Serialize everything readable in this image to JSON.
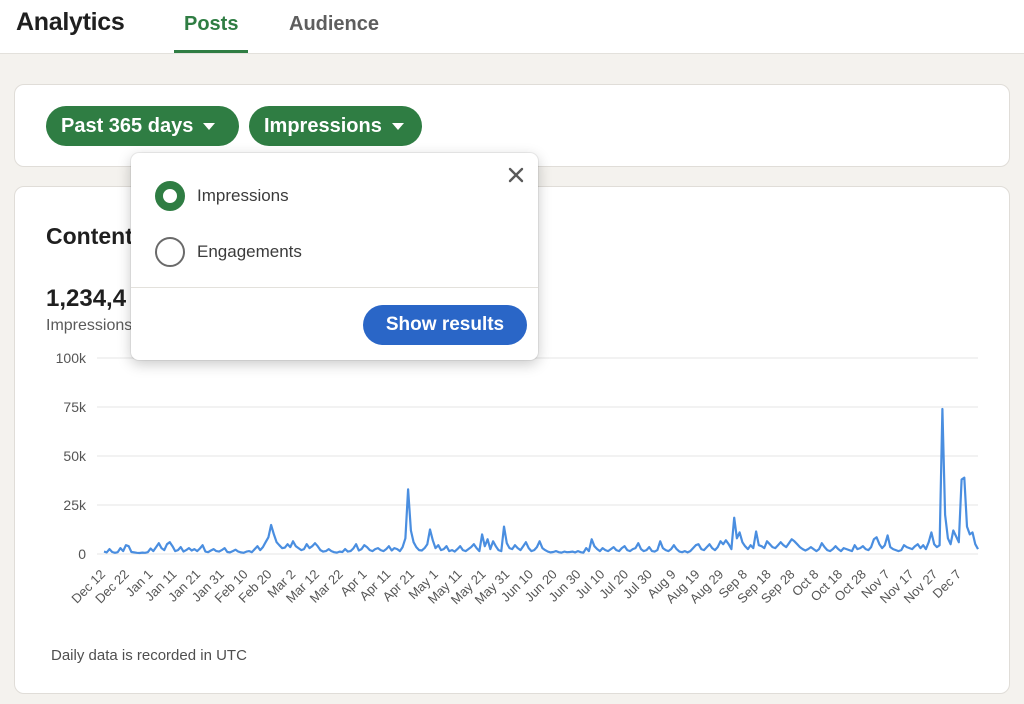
{
  "header": {
    "title": "Analytics",
    "tabs": [
      {
        "label": "Posts",
        "active": true
      },
      {
        "label": "Audience",
        "active": false
      }
    ]
  },
  "filters": {
    "date_range": "Past 365 days",
    "metric": "Impressions"
  },
  "content": {
    "title": "Content performance",
    "total": "1,234,4",
    "total_label": "Impressions",
    "footnote": "Daily data is recorded in UTC"
  },
  "metric_popup": {
    "options": [
      {
        "label": "Impressions",
        "selected": true
      },
      {
        "label": "Engagements",
        "selected": false
      }
    ],
    "submit_label": "Show results"
  },
  "colors": {
    "accent_green": "#2f7d43",
    "button_blue": "#2a66c7",
    "line_blue": "#4a8ee0"
  },
  "chart_data": {
    "type": "line",
    "y_ticks": [
      "100k",
      "75k",
      "50k",
      "25k",
      "0"
    ],
    "ylim": [
      0,
      100000
    ],
    "x_tick_labels": [
      "Dec 12",
      "Dec 22",
      "Jan 1",
      "Jan 11",
      "Jan 21",
      "Jan 31",
      "Feb 10",
      "Feb 20",
      "Mar 2",
      "Mar 12",
      "Mar 22",
      "Apr 1",
      "Apr 11",
      "Apr 21",
      "May 1",
      "May 11",
      "May 21",
      "May 31",
      "Jun 10",
      "Jun 20",
      "Jun 30",
      "Jul 10",
      "Jul 20",
      "Jul 30",
      "Aug 9",
      "Aug 19",
      "Aug 29",
      "Sep 8",
      "Sep 18",
      "Sep 28",
      "Oct 8",
      "Oct 18",
      "Oct 28",
      "Nov 7",
      "Nov 17",
      "Nov 27",
      "Dec 7"
    ],
    "series": [
      {
        "values": [
          1200,
          800,
          2500,
          1000,
          600,
          900,
          3000,
          1500,
          4500,
          4000,
          1000,
          800,
          600,
          500,
          700,
          600,
          900,
          2800,
          1500,
          3500,
          5500,
          3000,
          2000,
          5000,
          6000,
          4000,
          1500,
          2000,
          3500,
          1200,
          2000,
          3000,
          1800,
          2500,
          1500,
          2800,
          4500,
          1200,
          900,
          1800,
          2500,
          1500,
          1200,
          2000,
          3000,
          1000,
          800,
          1500,
          2200,
          1200,
          800,
          600,
          1200,
          1500,
          900,
          2500,
          4000,
          2000,
          3500,
          6000,
          8500,
          14800,
          10000,
          6000,
          4500,
          3000,
          3200,
          5000,
          3500,
          6500,
          4000,
          3000,
          2000,
          2500,
          5000,
          3000,
          4000,
          5500,
          4000,
          2000,
          1200,
          1500,
          2500,
          1500,
          900,
          700,
          1200,
          1000,
          2500,
          1200,
          1500,
          2800,
          5000,
          1800,
          2500,
          4500,
          3500,
          2000,
          1500,
          2500,
          3000,
          2000,
          1500,
          2500,
          4000,
          1800,
          3000,
          2500,
          1500,
          3500,
          8000,
          33000,
          12000,
          6000,
          3500,
          2000,
          1800,
          3000,
          5000,
          12500,
          7000,
          3000,
          4500,
          2000,
          2500,
          4000,
          1500,
          2000,
          1200,
          2500,
          4000,
          2000,
          1500,
          2500,
          3500,
          5000,
          3000,
          1500,
          10000,
          4000,
          7500,
          2500,
          6500,
          4000,
          2000,
          1500,
          14000,
          5500,
          3000,
          2500,
          4500,
          3000,
          2000,
          4000,
          6000,
          3000,
          1500,
          2000,
          3500,
          6500,
          3000,
          2000,
          1200,
          800,
          1000,
          1500,
          900,
          700,
          1200,
          900,
          1000,
          1200,
          800,
          1500,
          900,
          700,
          3000,
          1500,
          7500,
          4000,
          2500,
          1500,
          3000,
          2000,
          1500,
          2500,
          3500,
          2000,
          1500,
          3000,
          4000,
          2000,
          1500,
          2500,
          3000,
          5500,
          2500,
          1500,
          2000,
          3500,
          1500,
          1200,
          2000,
          6500,
          3000,
          2000,
          1500,
          2500,
          4500,
          2500,
          1200,
          900,
          1500,
          800,
          1500,
          3000,
          4500,
          5000,
          2500,
          2000,
          3500,
          5000,
          3000,
          2000,
          3500,
          6500,
          5000,
          7000,
          5000,
          2500,
          18500,
          8000,
          11000,
          6000,
          4000,
          2500,
          4500,
          3000,
          11500,
          4500,
          4000,
          3000,
          6500,
          5000,
          3500,
          3000,
          4500,
          6000,
          4500,
          3500,
          5500,
          7500,
          6500,
          5000,
          3500,
          2500,
          1800,
          2500,
          3500,
          2500,
          1500,
          2500,
          5500,
          3500,
          2000,
          1500,
          2500,
          4000,
          2500,
          1500,
          3000,
          2500,
          2000,
          1500,
          4500,
          2500,
          3000,
          4000,
          2500,
          2000,
          3500,
          7500,
          8500,
          5000,
          3000,
          4500,
          9500,
          3500,
          2500,
          2000,
          1500,
          2000,
          4500,
          3500,
          3000,
          2500,
          4000,
          5000,
          3000,
          4500,
          2500,
          6000,
          11000,
          5000,
          3500,
          4500,
          74000,
          20000,
          8000,
          5000,
          12000,
          9000,
          6000,
          38000,
          39000,
          14000,
          10000,
          11000,
          5000,
          2500
        ]
      }
    ]
  }
}
